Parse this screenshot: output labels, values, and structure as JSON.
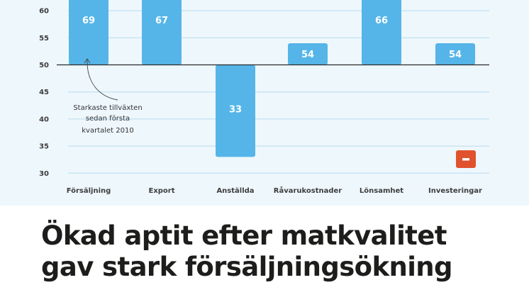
{
  "chart_data": {
    "type": "bar",
    "baseline": 50,
    "categories": [
      "Försäljning",
      "Export",
      "Anställda",
      "Råvarukostnader",
      "Lönsamhet",
      "Investeringar"
    ],
    "values": [
      69,
      67,
      33,
      54,
      66,
      54
    ],
    "value_labels": [
      "69",
      "67",
      "33",
      "54",
      "66",
      "54"
    ],
    "yticks": [
      30,
      35,
      40,
      45,
      50,
      55,
      60
    ],
    "ylim": [
      30,
      62
    ],
    "grid": true,
    "bar_color": "#55b5e8",
    "annotation": {
      "lines": [
        "Starkaste tillväxten",
        "sedan första",
        "kvartalet 2010"
      ],
      "points_to": "Försäljning"
    },
    "minus_badge": {
      "symbol": "−",
      "color": "#e0522e"
    }
  },
  "headline": {
    "line1": "Ökad aptit efter matkvalitet",
    "line2": "gav stark försäljningsökning"
  }
}
